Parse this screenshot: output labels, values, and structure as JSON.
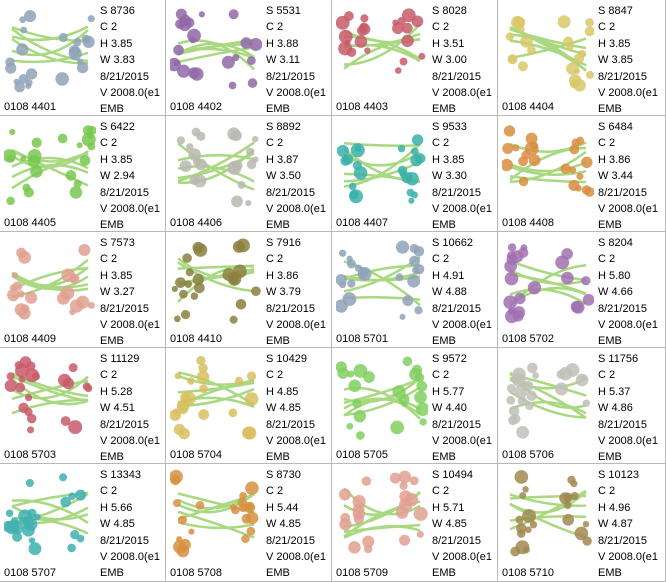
{
  "designs": [
    {
      "code": "0108  4401",
      "S": "S  8736",
      "C": "C  2",
      "H": "H  3.85",
      "W": "W 3.83",
      "date": "8/21/2015",
      "V": "V  2008.0(e1",
      "fmt": "EMB",
      "color": "#8ea2b8"
    },
    {
      "code": "0108  4402",
      "S": "S  5531",
      "C": "C  2",
      "H": "H  3.88",
      "W": "W 3.11",
      "date": "8/21/2015",
      "V": "V  2008.0(e1",
      "fmt": "EMB",
      "color": "#9068a8"
    },
    {
      "code": "0108  4403",
      "S": "S  8028",
      "C": "C  2",
      "H": "H  3.51",
      "W": "W 3.00",
      "date": "8/21/2015",
      "V": "V  2008.0(e1",
      "fmt": "EMB",
      "color": "#c85a6a"
    },
    {
      "code": "0108  4404",
      "S": "S  8847",
      "C": "C  2",
      "H": "H  3.85",
      "W": "W 3.85",
      "date": "8/21/2015",
      "V": "V  2008.0(e1",
      "fmt": "EMB",
      "color": "#d8c868"
    },
    {
      "code": "0108  4405",
      "S": "S  6422",
      "C": "C  2",
      "H": "H  3.85",
      "W": "W 2.94",
      "date": "8/21/2015",
      "V": "V  2008.0(e1",
      "fmt": "EMB",
      "color": "#78c850"
    },
    {
      "code": "0108  4406",
      "S": "S  8892",
      "C": "C  2",
      "H": "H  3.87",
      "W": "W 3.50",
      "date": "8/21/2015",
      "V": "V  2008.0(e1",
      "fmt": "EMB",
      "color": "#b8b8b0"
    },
    {
      "code": "0108  4407",
      "S": "S  9533",
      "C": "C  2",
      "H": "H  3.85",
      "W": "W 3.30",
      "date": "8/21/2015",
      "V": "V  2008.0(e1",
      "fmt": "EMB",
      "color": "#38b0a8"
    },
    {
      "code": "0108  4408",
      "S": "S  6484",
      "C": "C  2",
      "H": "H  3.86",
      "W": "W 3.44",
      "date": "8/21/2015",
      "V": "V  2008.0(e1",
      "fmt": "EMB",
      "color": "#d88e40"
    },
    {
      "code": "0108  4409",
      "S": "S  7573",
      "C": "C  2",
      "H": "H  3.85",
      "W": "W 3.27",
      "date": "8/21/2015",
      "V": "V  2008.0(e1",
      "fmt": "EMB",
      "color": "#e0a090"
    },
    {
      "code": "0108  4410",
      "S": "S  7916",
      "C": "C  2",
      "H": "H  3.86",
      "W": "W 3.79",
      "date": "8/21/2015",
      "V": "V  2008.0(e1",
      "fmt": "EMB",
      "color": "#8a8040"
    },
    {
      "code": "0108  5701",
      "S": "S  10662",
      "C": "C  2",
      "H": "H  4.91",
      "W": "W 4.88",
      "date": "8/21/2015",
      "V": "V  2008.0(e1",
      "fmt": "EMB",
      "color": "#8ea2b8"
    },
    {
      "code": "0108  5702",
      "S": "S  8204",
      "C": "C  2",
      "H": "H  5.80",
      "W": "W 4.66",
      "date": "8/21/2015",
      "V": "V  2008.0(e1",
      "fmt": "EMB",
      "color": "#a070b0"
    },
    {
      "code": "0108  5703",
      "S": "S  11129",
      "C": "C  2",
      "H": "H  5.28",
      "W": "W 4.51",
      "date": "8/21/2015",
      "V": "V  2008.0(e1",
      "fmt": "EMB",
      "color": "#c85a6a"
    },
    {
      "code": "0108  5704",
      "S": "S  10429",
      "C": "C  2",
      "H": "H  4.85",
      "W": "W 4.85",
      "date": "8/21/2015",
      "V": "V  2008.0(e1",
      "fmt": "EMB",
      "color": "#d8c060"
    },
    {
      "code": "0108  5705",
      "S": "S  9572",
      "C": "C  2",
      "H": "H  5.77",
      "W": "W 4.40",
      "date": "8/21/2015",
      "V": "V  2008.0(e1",
      "fmt": "EMB",
      "color": "#80d060"
    },
    {
      "code": "0108  5706",
      "S": "S  11756",
      "C": "C  2",
      "H": "H  5.37",
      "W": "W 4.86",
      "date": "8/21/2015",
      "V": "V  2008.0(e1",
      "fmt": "EMB",
      "color": "#c0c0b8"
    },
    {
      "code": "0108  5707",
      "S": "S  13343",
      "C": "C  2",
      "H": "H  5.66",
      "W": "W 4.85",
      "date": "8/21/2015",
      "V": "V  2008.0(e1",
      "fmt": "EMB",
      "color": "#40b0b0"
    },
    {
      "code": "0108  5708",
      "S": "S  8730",
      "C": "C  2",
      "H": "H  5.44",
      "W": "W 4.85",
      "date": "8/21/2015",
      "V": "V  2008.0(e1",
      "fmt": "EMB",
      "color": "#d89040"
    },
    {
      "code": "0108  5709",
      "S": "S  10494",
      "C": "C  2",
      "H": "H  5.71",
      "W": "W 4.85",
      "date": "8/21/2015",
      "V": "V  2008.0(e1",
      "fmt": "EMB",
      "color": "#e0a090"
    },
    {
      "code": "0108  5710",
      "S": "S  10123",
      "C": "C  2",
      "H": "H  4.96",
      "W": "W 4.87",
      "date": "8/21/2015",
      "V": "V  2008.0(e1",
      "fmt": "EMB",
      "color": "#a08850"
    }
  ],
  "leaf_color": "#a8d880"
}
